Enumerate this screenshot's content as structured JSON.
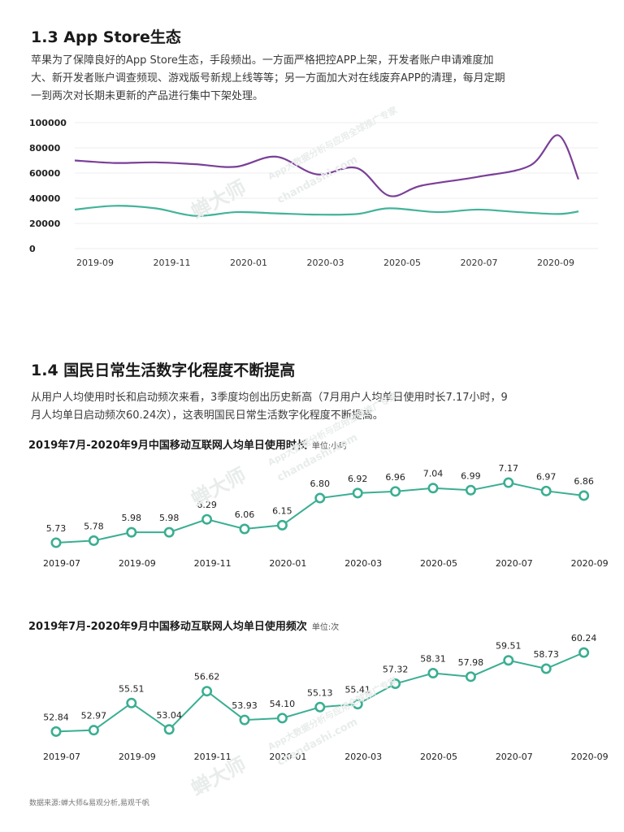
{
  "section_13": {
    "title": "1.3 App Store生态",
    "desc": "苹果为了保障良好的App Store生态，手段频出。一方面严格把控APP上架，开发者账户申请难度加大、新开发者账户调查频现、游戏版号新规上线等等；另一方面加大对在线废弃APP的清理，每月定期一到两次对长期未更新的产品进行集中下架处理。"
  },
  "section_14": {
    "title": "1.4 国民日常生活数字化程度不断提高",
    "desc": "从用户人均使用时长和启动频次来看，3季度均创出历史新高（7月用户人均单日使用时长7.17小时，9月人均单日启动频次60.24次），这表明国民日常生活数字化程度不断提高。"
  },
  "watermark": {
    "brand": "蝉大师",
    "slogan": "App大数据分析与应用全球推广专家",
    "url": "chandashi.com"
  },
  "footer": {
    "source": "数据来源:蝉大师&易观分析,易观千帆"
  },
  "colors": {
    "purple": "#7a3f98",
    "teal": "#43b39a",
    "grid": "#eeeeee",
    "dot": "#3aae92"
  },
  "chart_data": [
    {
      "type": "line",
      "title": "",
      "x_ticks": [
        "2019-09",
        "2019-11",
        "2020-01",
        "2020-03",
        "2020-05",
        "2020-07",
        "2020-09"
      ],
      "y_ticks": [
        "100000",
        "80000",
        "60000",
        "40000",
        "20000",
        "0"
      ],
      "ylim": [
        0,
        100000
      ],
      "xlim": [
        0,
        12.5
      ],
      "grid": true,
      "series": [
        {
          "name": "series-purple",
          "color": "#7a3f98",
          "points": [
            [
              0,
              70000
            ],
            [
              1,
              68000
            ],
            [
              2,
              68500
            ],
            [
              3,
              67000
            ],
            [
              4,
              65000
            ],
            [
              5,
              73000
            ],
            [
              6,
              59000
            ],
            [
              7,
              64000
            ],
            [
              7.8,
              42000
            ],
            [
              8.6,
              50000
            ],
            [
              10,
              57000
            ],
            [
              11.3,
              66000
            ],
            [
              12,
              90000
            ],
            [
              12.5,
              55000
            ]
          ]
        },
        {
          "name": "series-teal",
          "color": "#43b39a",
          "points": [
            [
              0,
              31000
            ],
            [
              1,
              34000
            ],
            [
              2,
              32000
            ],
            [
              3,
              26000
            ],
            [
              4,
              29000
            ],
            [
              5,
              28000
            ],
            [
              6,
              27000
            ],
            [
              7,
              27500
            ],
            [
              7.8,
              32000
            ],
            [
              9,
              29000
            ],
            [
              10,
              31000
            ],
            [
              11,
              29000
            ],
            [
              12,
              27500
            ],
            [
              12.5,
              29500
            ]
          ]
        }
      ]
    },
    {
      "type": "line",
      "title": "2019年7月-2020年9月中国移动互联网人均单日使用时长",
      "unit": "单位:小时",
      "x_ticks": [
        "2019-07",
        "2019-09",
        "2019-11",
        "2020-01",
        "2020-03",
        "2020-05",
        "2020-07",
        "2020-09"
      ],
      "categories": [
        "2019-07",
        "2019-08",
        "2019-09",
        "2019-10",
        "2019-11",
        "2019-12",
        "2020-01",
        "2020-02",
        "2020-03",
        "2020-04",
        "2020-05",
        "2020-06",
        "2020-07",
        "2020-08",
        "2020-09"
      ],
      "values": [
        5.73,
        5.78,
        5.98,
        5.98,
        6.29,
        6.06,
        6.15,
        6.8,
        6.92,
        6.96,
        7.04,
        6.99,
        7.17,
        6.97,
        6.86
      ],
      "labels": [
        "5.73",
        "5.78",
        "5.98",
        "5.98",
        "6.29",
        "6.06",
        "6.15",
        "6.80",
        "6.92",
        "6.96",
        "7.04",
        "6.99",
        "7.17",
        "6.97",
        "6.86"
      ],
      "ylim": [
        5.3,
        7.6
      ]
    },
    {
      "type": "line",
      "title": "2019年7月-2020年9月中国移动互联网人均单日使用频次",
      "unit": "单位:次",
      "x_ticks": [
        "2019-07",
        "2019-09",
        "2019-11",
        "2020-01",
        "2020-03",
        "2020-05",
        "2020-07",
        "2020-09"
      ],
      "categories": [
        "2019-07",
        "2019-08",
        "2019-09",
        "2019-10",
        "2019-11",
        "2019-12",
        "2020-01",
        "2020-02",
        "2020-03",
        "2020-04",
        "2020-05",
        "2020-06",
        "2020-07",
        "2020-08",
        "2020-09"
      ],
      "values": [
        52.84,
        52.97,
        55.51,
        53.04,
        56.62,
        53.93,
        54.1,
        55.13,
        55.41,
        57.32,
        58.31,
        57.98,
        59.51,
        58.73,
        60.24
      ],
      "labels": [
        "52.84",
        "52.97",
        "55.51",
        "53.04",
        "56.62",
        "53.93",
        "54.10",
        "55.13",
        "55.41",
        "57.32",
        "58.31",
        "57.98",
        "59.51",
        "58.73",
        "60.24"
      ],
      "ylim": [
        51.5,
        62
      ]
    }
  ]
}
